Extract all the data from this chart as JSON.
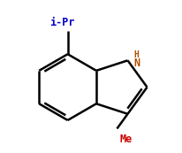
{
  "bg_color": "#ffffff",
  "line_color": "#000000",
  "label_color_iPr": "#0000cc",
  "label_color_N": "#b05000",
  "label_color_H": "#b05000",
  "label_color_Me": "#cc0000",
  "lw": 1.8,
  "iPr_label": "i-Pr",
  "N_label": "N",
  "H_label": "H",
  "Me_label": "Me",
  "font_size_main": 8.5,
  "font_size_H": 7.0
}
